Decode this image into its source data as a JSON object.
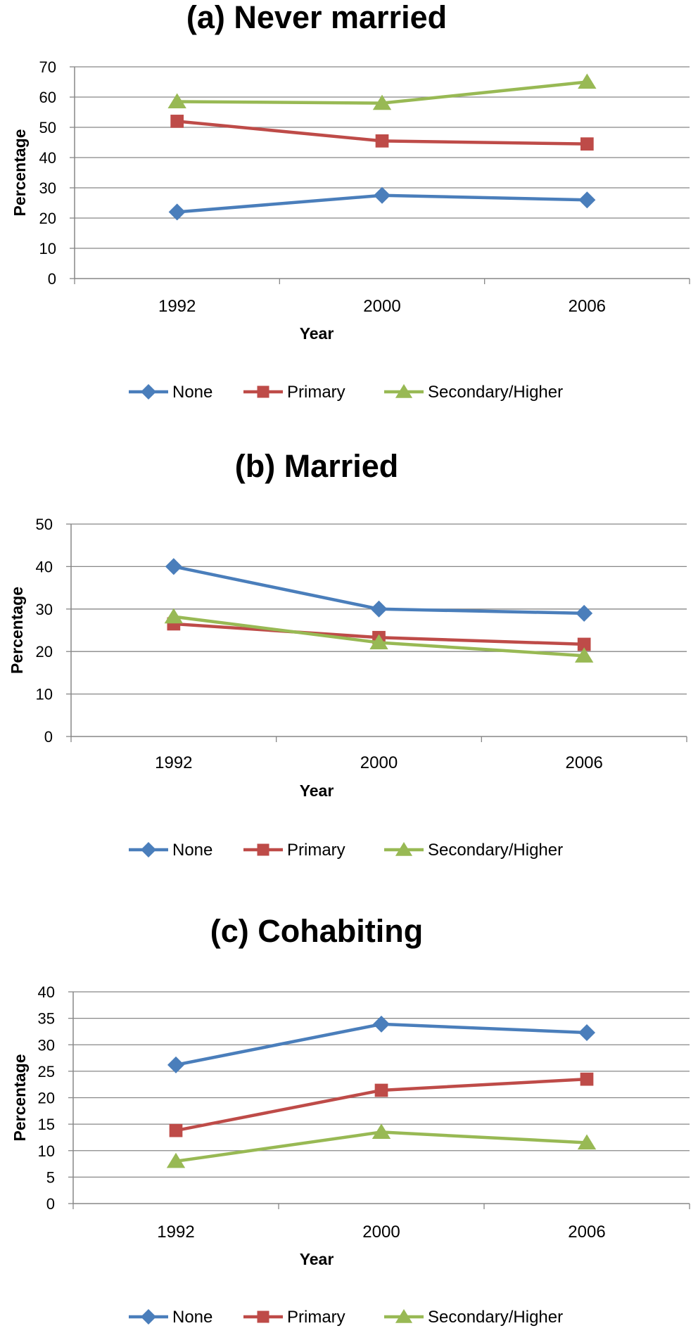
{
  "colors": {
    "series": [
      "#4a7ebb",
      "#be4b48",
      "#98b954"
    ],
    "grid": "#878787",
    "axis": "#878787",
    "text": "#000000"
  },
  "legend": [
    {
      "label": "None",
      "marker": "diamond"
    },
    {
      "label": "Primary",
      "marker": "square"
    },
    {
      "label": "Secondary/Higher",
      "marker": "triangle"
    }
  ],
  "chart_data": [
    {
      "type": "line",
      "title": "(a) Never married",
      "xlabel": "Year",
      "ylabel": "Percentage",
      "categories": [
        "1992",
        "2000",
        "2006"
      ],
      "ylim": [
        0,
        70
      ],
      "yticks": [
        0,
        10,
        20,
        30,
        40,
        50,
        60,
        70
      ],
      "grid": true,
      "legend_position": "bottom",
      "series": [
        {
          "name": "None",
          "values": [
            22,
            27.5,
            26
          ]
        },
        {
          "name": "Primary",
          "values": [
            52,
            45.5,
            44.5
          ]
        },
        {
          "name": "Secondary/Higher",
          "values": [
            58.5,
            58,
            65
          ]
        }
      ]
    },
    {
      "type": "line",
      "title": "(b) Married",
      "xlabel": "Year",
      "ylabel": "Percentage",
      "categories": [
        "1992",
        "2000",
        "2006"
      ],
      "ylim": [
        0,
        50
      ],
      "yticks": [
        0,
        10,
        20,
        30,
        40,
        50
      ],
      "grid": true,
      "legend_position": "bottom",
      "series": [
        {
          "name": "None",
          "values": [
            40,
            30,
            29
          ]
        },
        {
          "name": "Primary",
          "values": [
            26.5,
            23.3,
            21.7
          ]
        },
        {
          "name": "Secondary/Higher",
          "values": [
            28.2,
            22.1,
            19
          ]
        }
      ]
    },
    {
      "type": "line",
      "title": "(c) Cohabiting",
      "xlabel": "Year",
      "ylabel": "Percentage",
      "categories": [
        "1992",
        "2000",
        "2006"
      ],
      "ylim": [
        0,
        40
      ],
      "yticks": [
        0,
        5,
        10,
        15,
        20,
        25,
        30,
        35,
        40
      ],
      "grid": true,
      "legend_position": "bottom",
      "series": [
        {
          "name": "None",
          "values": [
            26.2,
            33.9,
            32.3
          ]
        },
        {
          "name": "Primary",
          "values": [
            13.8,
            21.4,
            23.5
          ]
        },
        {
          "name": "Secondary/Higher",
          "values": [
            8,
            13.5,
            11.5
          ]
        }
      ]
    }
  ]
}
